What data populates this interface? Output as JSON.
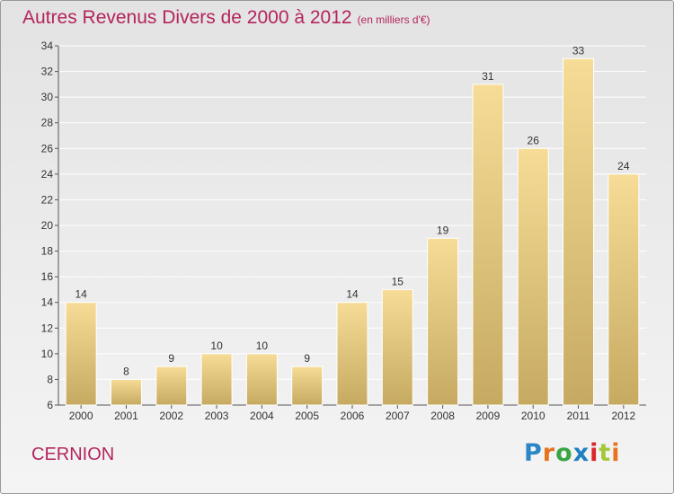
{
  "title": "Autres Revenus Divers de 2000 à 2012",
  "subtitle": "(en milliers d'€)",
  "place": "CERNION",
  "logo": {
    "text": "Proxiti",
    "colors": [
      "#2b86c6",
      "#e8731f",
      "#3aa545",
      "#1f7fc2",
      "#d9262b",
      "#a3c83a",
      "#e8731f"
    ]
  },
  "colors": {
    "title": "#b4245d",
    "bar_light": "#f6dc96",
    "bar_dark": "#c6aa62"
  },
  "chart_data": {
    "type": "bar",
    "categories": [
      "2000",
      "2001",
      "2002",
      "2003",
      "2004",
      "2005",
      "2006",
      "2007",
      "2008",
      "2009",
      "2010",
      "2011",
      "2012"
    ],
    "values": [
      14,
      8,
      9,
      10,
      10,
      9,
      14,
      15,
      19,
      31,
      26,
      33,
      24
    ],
    "ylim": [
      6,
      34
    ],
    "yticks": [
      6,
      8,
      10,
      12,
      14,
      16,
      18,
      20,
      22,
      24,
      26,
      28,
      30,
      32,
      34
    ],
    "grid": true,
    "data_labels": true
  }
}
